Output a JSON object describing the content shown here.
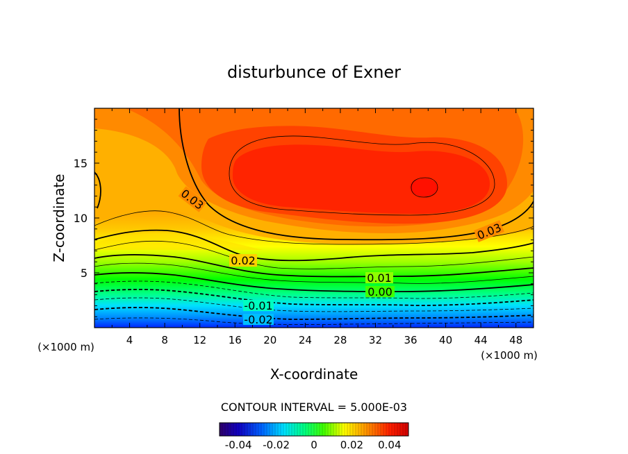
{
  "chart_data": {
    "type": "heatmap",
    "title": "disturbunce of Exner",
    "xlabel": "X-coordinate",
    "ylabel": "Z-coordinate",
    "x_unit_left": "(×1000 m)",
    "x_unit_right": "(×1000 m)",
    "xlim": [
      0,
      50
    ],
    "ylim": [
      0,
      20
    ],
    "x_ticks": [
      "4",
      "8",
      "12",
      "16",
      "20",
      "24",
      "28",
      "32",
      "36",
      "40",
      "44",
      "48"
    ],
    "y_ticks": [
      "5",
      "10",
      "15"
    ],
    "contour_interval_text": "CONTOUR INTERVAL = 5.000E-03",
    "contour_labels": [
      "0.03",
      "0.03",
      "0.02",
      "0.01",
      "0.00",
      "-0.01",
      "-0.02"
    ],
    "colorbar": {
      "ticks": [
        "-0.04",
        "-0.02",
        "0",
        "0.02",
        "0.04"
      ],
      "range": [
        -0.05,
        0.05
      ],
      "colors": [
        "#3a00a0",
        "#0000ff",
        "#0080ff",
        "#00ffff",
        "#00ff80",
        "#00ff00",
        "#80ff00",
        "#ffff00",
        "#ffc000",
        "#ff8000",
        "#ff4000",
        "#ff0000"
      ]
    },
    "field_summary": {
      "max_value": 0.035,
      "max_location": {
        "x": 37,
        "z": 12.5
      },
      "min_value": -0.025,
      "min_location": "bottom boundary z≈0"
    }
  }
}
